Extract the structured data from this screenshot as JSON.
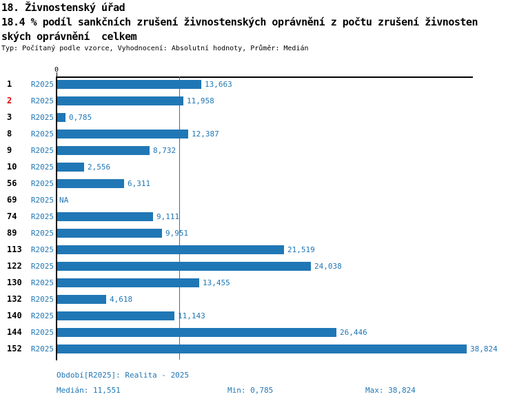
{
  "header": {
    "title": "18. Živnostenský úřad",
    "subtitle_line1": "18.4 % podíl sankčních zrušení živnostenských oprávnění z počtu zrušení živnosten",
    "subtitle_line2": "ských oprávnění  celkem",
    "meta": "Typ: Počítaný podle vzorce, Vyhodnocení: Absolutní hodnoty, Průměr: Medián"
  },
  "chart_data": {
    "type": "bar",
    "orientation": "horizontal",
    "title": "18. Živnostenský úřad",
    "xlabel": "",
    "ylabel": "",
    "axis": {
      "zero_label": "0",
      "xlim": [
        0,
        39.4
      ],
      "grid": false
    },
    "series_label": "R2025",
    "rows": [
      {
        "rank": "1",
        "value": 13.663,
        "value_label": "13,663",
        "highlight": false
      },
      {
        "rank": "2",
        "value": 11.958,
        "value_label": "11,958",
        "highlight": true
      },
      {
        "rank": "3",
        "value": 0.785,
        "value_label": "0,785",
        "highlight": false
      },
      {
        "rank": "8",
        "value": 12.387,
        "value_label": "12,387",
        "highlight": false
      },
      {
        "rank": "9",
        "value": 8.732,
        "value_label": "8,732",
        "highlight": false
      },
      {
        "rank": "10",
        "value": 2.556,
        "value_label": "2,556",
        "highlight": false
      },
      {
        "rank": "56",
        "value": 6.311,
        "value_label": "6,311",
        "highlight": false
      },
      {
        "rank": "69",
        "value": null,
        "value_label": "NA",
        "highlight": false
      },
      {
        "rank": "74",
        "value": 9.111,
        "value_label": "9,111",
        "highlight": false
      },
      {
        "rank": "89",
        "value": 9.951,
        "value_label": "9,951",
        "highlight": false
      },
      {
        "rank": "113",
        "value": 21.519,
        "value_label": "21,519",
        "highlight": false
      },
      {
        "rank": "122",
        "value": 24.038,
        "value_label": "24,038",
        "highlight": false
      },
      {
        "rank": "130",
        "value": 13.455,
        "value_label": "13,455",
        "highlight": false
      },
      {
        "rank": "132",
        "value": 4.618,
        "value_label": "4,618",
        "highlight": false
      },
      {
        "rank": "140",
        "value": 11.143,
        "value_label": "11,143",
        "highlight": false
      },
      {
        "rank": "144",
        "value": 26.446,
        "value_label": "26,446",
        "highlight": false
      },
      {
        "rank": "152",
        "value": 38.824,
        "value_label": "38,824",
        "highlight": false
      }
    ],
    "median_value": 11.551,
    "colors": {
      "bar": "#2077b5",
      "median_line": "#2077b5",
      "value_text": "#2077b5",
      "highlight_rank": "#dd0000",
      "axis": "#000000"
    }
  },
  "footer": {
    "period": "Období[R2025]: Realita - 2025",
    "median": "Medián: 11,551",
    "min": "Min: 0,785",
    "max": "Max: 38,824"
  }
}
